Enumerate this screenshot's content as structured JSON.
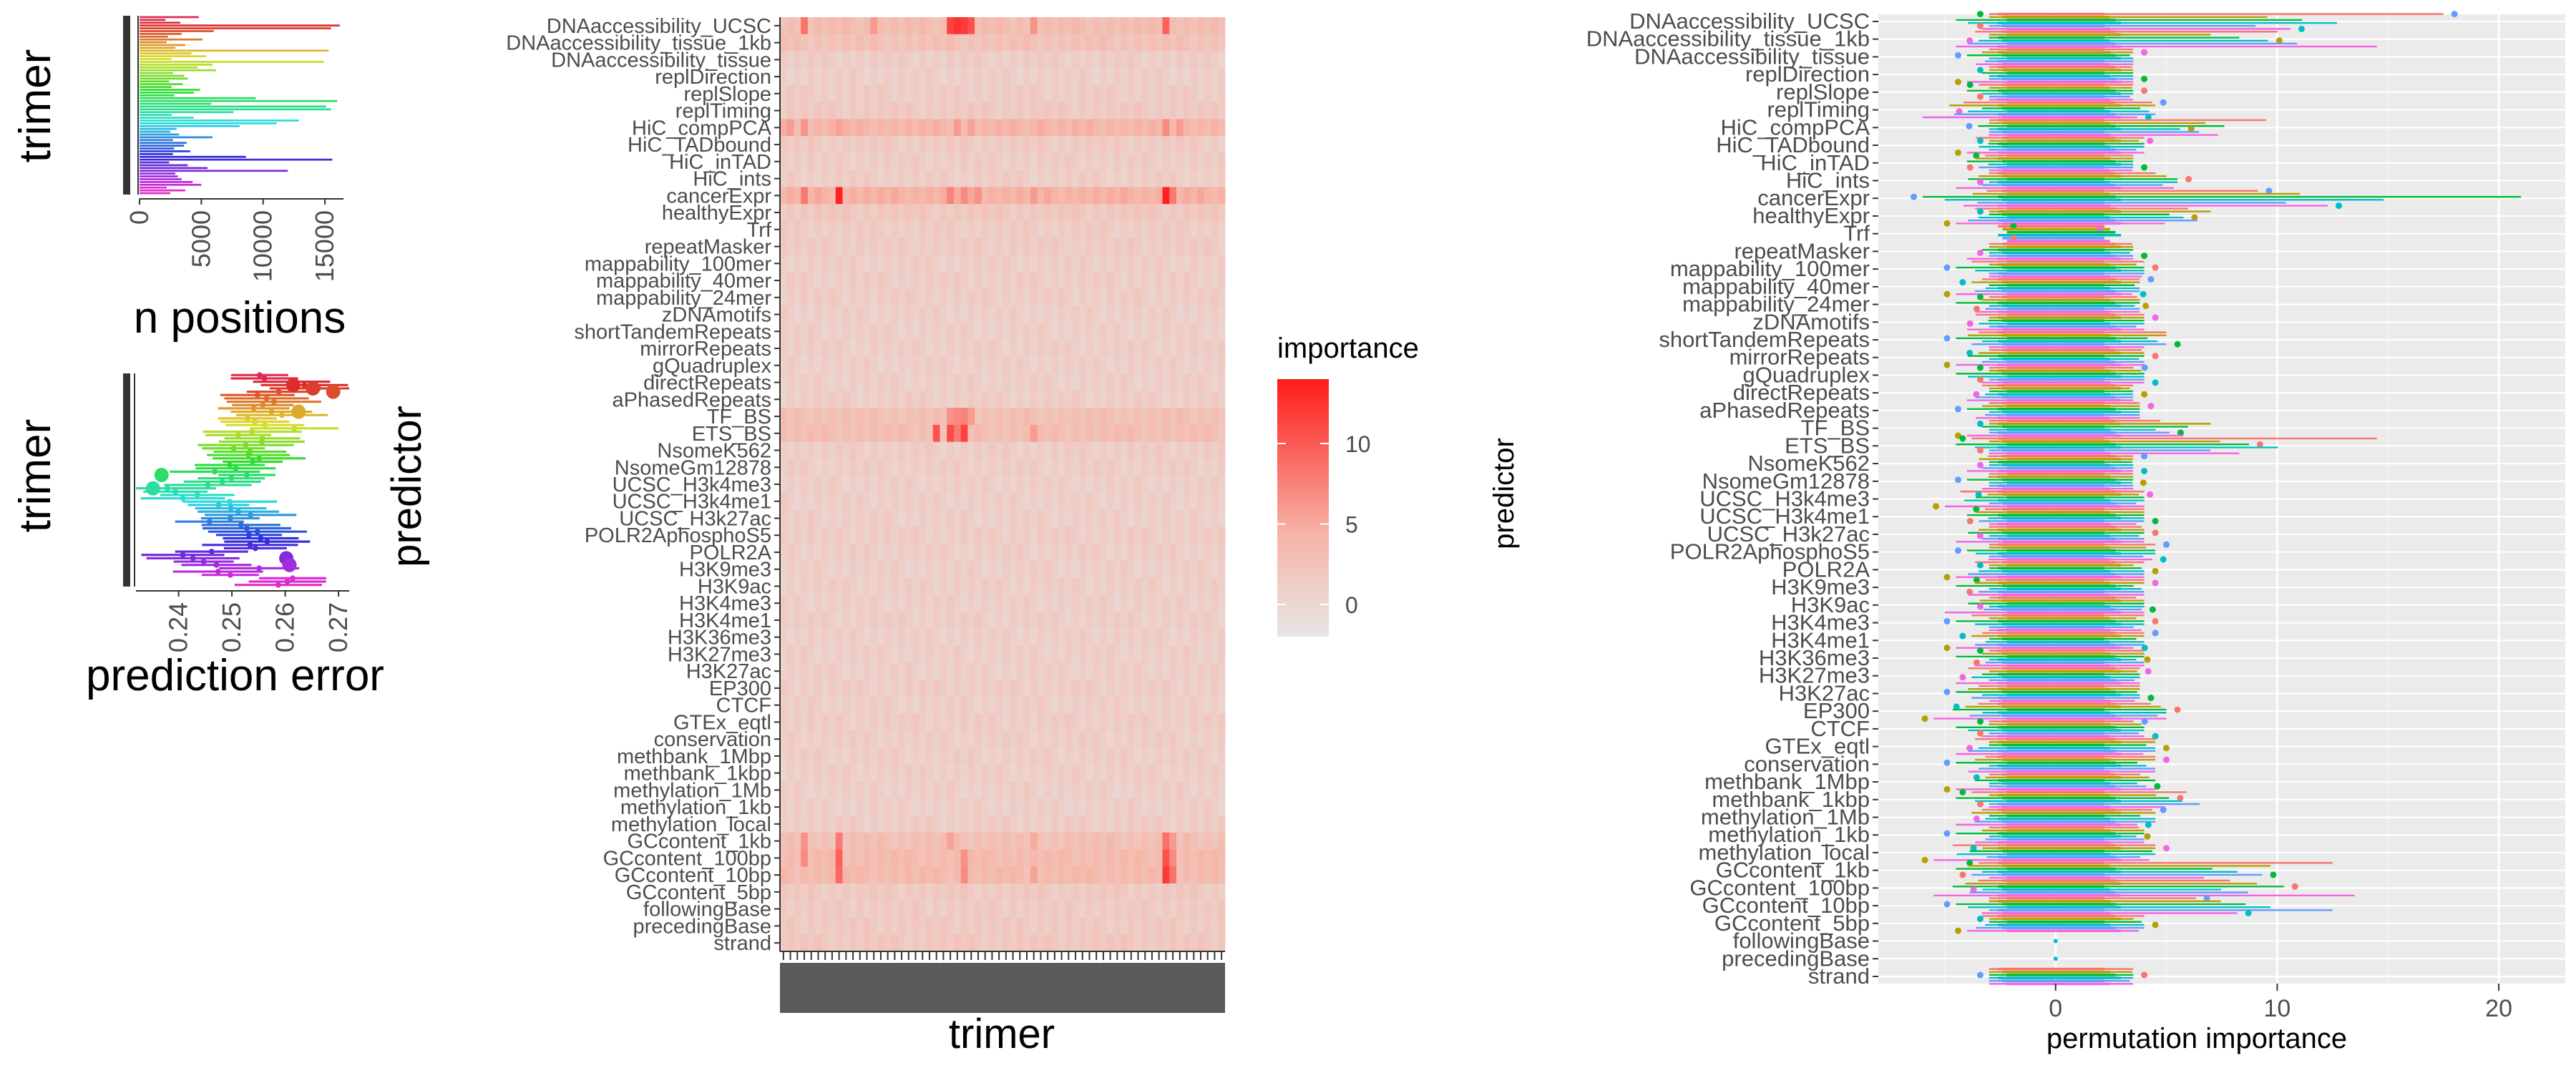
{
  "colors": {
    "panel_bg": "#ebebeb",
    "grid_major": "#ffffff",
    "axis_text": "#4d4d4d",
    "title_text": "#000000",
    "heat_low": "#e6e6e6",
    "heat_high": "#ff1a1a"
  },
  "chart_data": [
    {
      "type": "bar",
      "orientation": "horizontal",
      "xlabel": "n positions",
      "ylabel": "trimer",
      "xticks": [
        0,
        5000,
        10000,
        15000
      ],
      "xlim": [
        0,
        16500
      ],
      "n_categories": 64,
      "values": [
        4800,
        2100,
        3300,
        16200,
        15500,
        6000,
        3400,
        2300,
        5100,
        2200,
        3700,
        2900,
        15300,
        4200,
        5400,
        2600,
        14900,
        5900,
        4700,
        6200,
        2700,
        3600,
        3900,
        2400,
        3500,
        2600,
        4900,
        4400,
        2800,
        9400,
        16000,
        5800,
        15100,
        15500,
        7600,
        2600,
        4400,
        12900,
        11100,
        8100,
        3000,
        2500,
        3200,
        5900,
        2700,
        3800,
        3600,
        2800,
        4100,
        2700,
        8600,
        15600,
        2400,
        3900,
        5500,
        12000,
        2900,
        3100,
        3400,
        4300,
        5000,
        2200,
        3700,
        2500
      ]
    },
    {
      "type": "scatter",
      "xlabel": "prediction error",
      "ylabel": "trimer",
      "xticks": [
        0.24,
        0.25,
        0.26,
        0.27
      ],
      "xlim": [
        0.232,
        0.272
      ],
      "n_categories": 64,
      "values": [
        0.2552,
        0.2561,
        0.2612,
        0.2636,
        0.2662,
        0.2588,
        0.2548,
        0.2565,
        0.2579,
        0.2558,
        0.2541,
        0.2574,
        0.2594,
        0.2529,
        0.2543,
        0.2562,
        0.2617,
        0.2538,
        0.2512,
        0.2557,
        0.2556,
        0.2526,
        0.2503,
        0.2534,
        0.2531,
        0.2551,
        0.2539,
        0.2496,
        0.2507,
        0.2468,
        0.2528,
        0.2499,
        0.2482,
        0.2455,
        0.2379,
        0.2394,
        0.2435,
        0.2408,
        0.2496,
        0.2475,
        0.2498,
        0.2512,
        0.2535,
        0.2497,
        0.2458,
        0.2517,
        0.2528,
        0.2548,
        0.2532,
        0.2554,
        0.2566,
        0.2534,
        0.2544,
        0.2462,
        0.2408,
        0.2427,
        0.2447,
        0.2471,
        0.2551,
        0.2474,
        0.2497,
        0.2614,
        0.2604,
        0.2587
      ]
    },
    {
      "type": "heatmap",
      "xlabel": "trimer",
      "ylabel": "predictor",
      "legend_title": "importance",
      "legend_ticks": [
        0,
        5,
        10
      ],
      "value_range": [
        -2,
        14
      ],
      "n_columns": 64,
      "predictors": [
        "DNAaccessibility_UCSC",
        "DNAaccessibility_tissue_1kb",
        "DNAaccessibility_tissue",
        "replDirection",
        "replSlope",
        "replTiming",
        "HiC_compPCA",
        "HiC_TADbound",
        "HiC_inTAD",
        "HiC_ints",
        "cancerExpr",
        "healthyExpr",
        "Trf",
        "repeatMasker",
        "mappability_100mer",
        "mappability_40mer",
        "mappability_24mer",
        "zDNAmotifs",
        "shortTandemRepeats",
        "mirrorRepeats",
        "gQuadruplex",
        "directRepeats",
        "aPhasedRepeats",
        "TF_BS",
        "ETS_BS",
        "NsomeK562",
        "NsomeGm12878",
        "UCSC_H3k4me3",
        "UCSC_H3k4me1",
        "UCSC_H3k27ac",
        "POLR2AphosphoS5",
        "POLR2A",
        "H3K9me3",
        "H3K9ac",
        "H3K4me3",
        "H3K4me1",
        "H3K36me3",
        "H3K27me3",
        "H3K27ac",
        "EP300",
        "CTCF",
        "GTEx_eqtl",
        "conservation",
        "methbank_1Mbp",
        "methbank_1kbp",
        "methylation_1Mb",
        "methylation_1kb",
        "methylation_local",
        "GCcontent_1kb",
        "GCcontent_100bp",
        "GCcontent_10bp",
        "GCcontent_5bp",
        "followingBase",
        "precedingBase",
        "strand"
      ],
      "row_base": [
        3.2,
        2.6,
        1.2,
        1.0,
        1.3,
        1.6,
        4.0,
        1.4,
        1.2,
        1.1,
        4.4,
        1.9,
        1.3,
        1.4,
        1.1,
        1.2,
        1.2,
        1.0,
        1.0,
        1.1,
        1.0,
        1.0,
        1.1,
        2.8,
        3.0,
        1.2,
        1.1,
        1.0,
        1.0,
        1.0,
        1.2,
        1.1,
        1.0,
        1.1,
        1.0,
        1.1,
        1.0,
        1.0,
        1.0,
        1.2,
        1.0,
        1.2,
        1.1,
        1.1,
        1.1,
        1.0,
        1.0,
        1.2,
        2.9,
        3.4,
        3.5,
        1.6,
        1.5,
        1.6,
        1.8
      ],
      "hotspots": [
        {
          "row": 0,
          "cols": [
            3,
            13,
            24,
            25,
            26,
            27,
            36,
            55
          ],
          "values": [
            8.5,
            6.0,
            11.5,
            12.5,
            12.0,
            10.5,
            6.5,
            9.5
          ]
        },
        {
          "row": 6,
          "cols": [
            1,
            3,
            8,
            25,
            27,
            37,
            55,
            57
          ],
          "values": [
            6.0,
            6.5,
            5.5,
            6.0,
            5.5,
            5.0,
            7.0,
            6.0
          ]
        },
        {
          "row": 10,
          "cols": [
            3,
            8,
            24,
            26,
            28,
            36,
            55,
            56
          ],
          "values": [
            8.0,
            13.5,
            7.5,
            7.0,
            6.5,
            6.0,
            13.5,
            8.0
          ]
        },
        {
          "row": 23,
          "cols": [
            24,
            25,
            26,
            27
          ],
          "values": [
            6.5,
            7.0,
            7.5,
            6.0
          ]
        },
        {
          "row": 24,
          "cols": [
            22,
            24,
            25,
            26,
            36
          ],
          "values": [
            10.5,
            11.0,
            8.0,
            11.5,
            6.0
          ]
        },
        {
          "row": 48,
          "cols": [
            3,
            8,
            24,
            36,
            55,
            56
          ],
          "values": [
            6.5,
            8.0,
            5.5,
            5.0,
            8.5,
            6.0
          ]
        },
        {
          "row": 49,
          "cols": [
            3,
            8,
            26,
            55,
            56
          ],
          "values": [
            7.0,
            9.5,
            6.5,
            10.5,
            7.0
          ]
        },
        {
          "row": 50,
          "cols": [
            8,
            26,
            36,
            55,
            56
          ],
          "values": [
            9.0,
            7.0,
            5.5,
            12.0,
            8.5
          ]
        }
      ]
    },
    {
      "type": "boxplot",
      "orientation": "horizontal",
      "xlabel": "permutation importance",
      "ylabel": "predictor",
      "xticks": [
        0,
        10,
        20
      ],
      "xlim": [
        -8,
        23
      ],
      "predictors": [
        "DNAaccessibility_UCSC",
        "DNAaccessibility_tissue_1kb",
        "DNAaccessibility_tissue",
        "replDirection",
        "replSlope",
        "replTiming",
        "HiC_compPCA",
        "HiC_TADbound",
        "HiC_inTAD",
        "HiC_ints",
        "cancerExpr",
        "healthyExpr",
        "Trf",
        "repeatMasker",
        "mappability_100mer",
        "mappability_40mer",
        "mappability_24mer",
        "zDNAmotifs",
        "shortTandemRepeats",
        "mirrorRepeats",
        "gQuadruplex",
        "directRepeats",
        "aPhasedRepeats",
        "TF_BS",
        "ETS_BS",
        "NsomeK562",
        "NsomeGm12878",
        "UCSC_H3k4me3",
        "UCSC_H3k4me1",
        "UCSC_H3k27ac",
        "POLR2AphosphoS5",
        "POLR2A",
        "H3K9me3",
        "H3K9ac",
        "H3K4me3",
        "H3K4me1",
        "H3K36me3",
        "H3K27me3",
        "H3K27ac",
        "EP300",
        "CTCF",
        "GTEx_eqtl",
        "conservation",
        "methbank_1Mbp",
        "methbank_1kbp",
        "methylation_1Mb",
        "methylation_1kb",
        "methylation_local",
        "GCcontent_1kb",
        "GCcontent_100bp",
        "GCcontent_10bp",
        "GCcontent_5bp",
        "followingBase",
        "precedingBase",
        "strand"
      ],
      "max_extent": [
        17.5,
        14.5,
        3.5,
        3.5,
        3.5,
        4.5,
        9.5,
        4.0,
        3.5,
        5.5,
        21.0,
        7.0,
        1.5,
        3.5,
        4.0,
        3.8,
        3.8,
        4.0,
        5.0,
        4.0,
        4.0,
        3.5,
        3.8,
        7.0,
        14.5,
        3.5,
        3.5,
        4.0,
        4.0,
        4.0,
        4.5,
        4.0,
        4.0,
        4.0,
        4.0,
        4.0,
        4.0,
        3.8,
        3.8,
        5.0,
        4.0,
        4.5,
        4.5,
        4.5,
        6.5,
        4.5,
        4.0,
        4.5,
        12.5,
        13.5,
        12.5,
        4.0,
        0.0,
        0.0,
        3.5
      ],
      "min_extent": [
        -4.5,
        -4.5,
        -4.0,
        -4.0,
        -4.0,
        -6.0,
        -3.5,
        -4.0,
        -4.0,
        -4.5,
        -6.0,
        -4.5,
        -1.5,
        -4.0,
        -4.5,
        -4.5,
        -4.5,
        -4.0,
        -4.5,
        -4.5,
        -4.5,
        -4.0,
        -4.0,
        -4.0,
        -4.5,
        -4.0,
        -4.0,
        -5.0,
        -4.0,
        -4.5,
        -4.0,
        -4.5,
        -4.5,
        -5.0,
        -4.5,
        -4.5,
        -4.5,
        -4.5,
        -4.5,
        -5.5,
        -4.5,
        -4.5,
        -4.5,
        -4.5,
        -4.5,
        -4.5,
        -4.5,
        -5.5,
        -4.5,
        -5.5,
        -4.5,
        -4.0,
        0.0,
        0.0,
        -3.0
      ]
    }
  ]
}
